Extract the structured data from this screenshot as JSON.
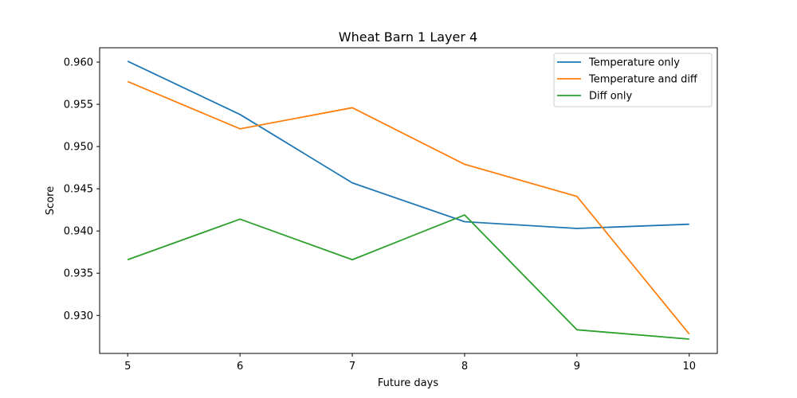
{
  "chart_data": {
    "type": "line",
    "title": "Wheat Barn 1 Layer 4",
    "xlabel": "Future days",
    "ylabel": "Score",
    "x": [
      5,
      6,
      7,
      8,
      9,
      10
    ],
    "xticks": [
      5,
      6,
      7,
      8,
      9,
      10
    ],
    "yticks": [
      0.93,
      0.935,
      0.94,
      0.945,
      0.95,
      0.955,
      0.96
    ],
    "ytick_labels": [
      "0.930",
      "0.935",
      "0.940",
      "0.945",
      "0.950",
      "0.955",
      "0.960"
    ],
    "xlim": [
      4.75,
      10.25
    ],
    "ylim": [
      0.9255,
      0.9617
    ],
    "grid": false,
    "legend_position": "top-right",
    "series": [
      {
        "name": "Temperature only",
        "color": "#1f77b4",
        "values": [
          0.9601,
          0.9538,
          0.9457,
          0.9411,
          0.9403,
          0.9408
        ]
      },
      {
        "name": "Temperature and diff",
        "color": "#ff7f0e",
        "values": [
          0.9577,
          0.9521,
          0.9546,
          0.9479,
          0.9441,
          0.9278
        ]
      },
      {
        "name": "Diff only",
        "color": "#2ca02c",
        "values": [
          0.9366,
          0.9414,
          0.9366,
          0.9419,
          0.9283,
          0.9272
        ]
      }
    ]
  }
}
